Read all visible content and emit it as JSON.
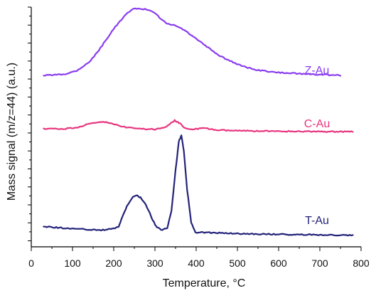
{
  "chart_data": {
    "type": "line",
    "title": "",
    "xlabel": "Temperature, °C",
    "ylabel": "Mass signal (m/z=44) (a.u.)",
    "xlim": [
      0,
      800
    ],
    "ylim": [
      0,
      1
    ],
    "x_ticks": [
      0,
      100,
      200,
      300,
      400,
      500,
      600,
      700,
      800
    ],
    "grid": false,
    "legend": "inline labels beside each curve",
    "series": [
      {
        "name": "Z-Au",
        "color": "#8a3cf0",
        "points": [
          [
            30,
            0.715
          ],
          [
            80,
            0.72
          ],
          [
            110,
            0.735
          ],
          [
            140,
            0.77
          ],
          [
            160,
            0.81
          ],
          [
            180,
            0.86
          ],
          [
            200,
            0.91
          ],
          [
            215,
            0.94
          ],
          [
            230,
            0.97
          ],
          [
            245,
            0.99
          ],
          [
            260,
            0.995
          ],
          [
            280,
            0.99
          ],
          [
            300,
            0.975
          ],
          [
            315,
            0.95
          ],
          [
            330,
            0.93
          ],
          [
            345,
            0.925
          ],
          [
            360,
            0.915
          ],
          [
            375,
            0.9
          ],
          [
            390,
            0.88
          ],
          [
            410,
            0.855
          ],
          [
            430,
            0.83
          ],
          [
            450,
            0.805
          ],
          [
            470,
            0.785
          ],
          [
            490,
            0.77
          ],
          [
            510,
            0.755
          ],
          [
            540,
            0.74
          ],
          [
            580,
            0.73
          ],
          [
            620,
            0.725
          ],
          [
            680,
            0.72
          ],
          [
            750,
            0.715
          ]
        ]
      },
      {
        "name": "C-Au",
        "color": "#e8357f",
        "points": [
          [
            30,
            0.492
          ],
          [
            80,
            0.492
          ],
          [
            110,
            0.498
          ],
          [
            130,
            0.508
          ],
          [
            150,
            0.516
          ],
          [
            170,
            0.52
          ],
          [
            190,
            0.518
          ],
          [
            210,
            0.508
          ],
          [
            230,
            0.498
          ],
          [
            260,
            0.492
          ],
          [
            300,
            0.49
          ],
          [
            320,
            0.495
          ],
          [
            335,
            0.51
          ],
          [
            348,
            0.527
          ],
          [
            358,
            0.518
          ],
          [
            370,
            0.5
          ],
          [
            385,
            0.49
          ],
          [
            400,
            0.492
          ],
          [
            420,
            0.495
          ],
          [
            450,
            0.487
          ],
          [
            500,
            0.484
          ],
          [
            600,
            0.482
          ],
          [
            700,
            0.481
          ],
          [
            780,
            0.48
          ]
        ]
      },
      {
        "name": "T-Au",
        "color": "#23237a",
        "points": [
          [
            30,
            0.085
          ],
          [
            80,
            0.078
          ],
          [
            130,
            0.073
          ],
          [
            170,
            0.07
          ],
          [
            200,
            0.075
          ],
          [
            212,
            0.085
          ],
          [
            220,
            0.12
          ],
          [
            232,
            0.17
          ],
          [
            245,
            0.205
          ],
          [
            255,
            0.215
          ],
          [
            265,
            0.205
          ],
          [
            275,
            0.185
          ],
          [
            285,
            0.15
          ],
          [
            295,
            0.11
          ],
          [
            305,
            0.08
          ],
          [
            318,
            0.07
          ],
          [
            330,
            0.08
          ],
          [
            340,
            0.15
          ],
          [
            350,
            0.32
          ],
          [
            358,
            0.44
          ],
          [
            364,
            0.465
          ],
          [
            370,
            0.4
          ],
          [
            378,
            0.24
          ],
          [
            388,
            0.1
          ],
          [
            398,
            0.06
          ],
          [
            420,
            0.06
          ],
          [
            500,
            0.055
          ],
          [
            600,
            0.052
          ],
          [
            700,
            0.05
          ],
          [
            780,
            0.048
          ]
        ]
      }
    ]
  }
}
